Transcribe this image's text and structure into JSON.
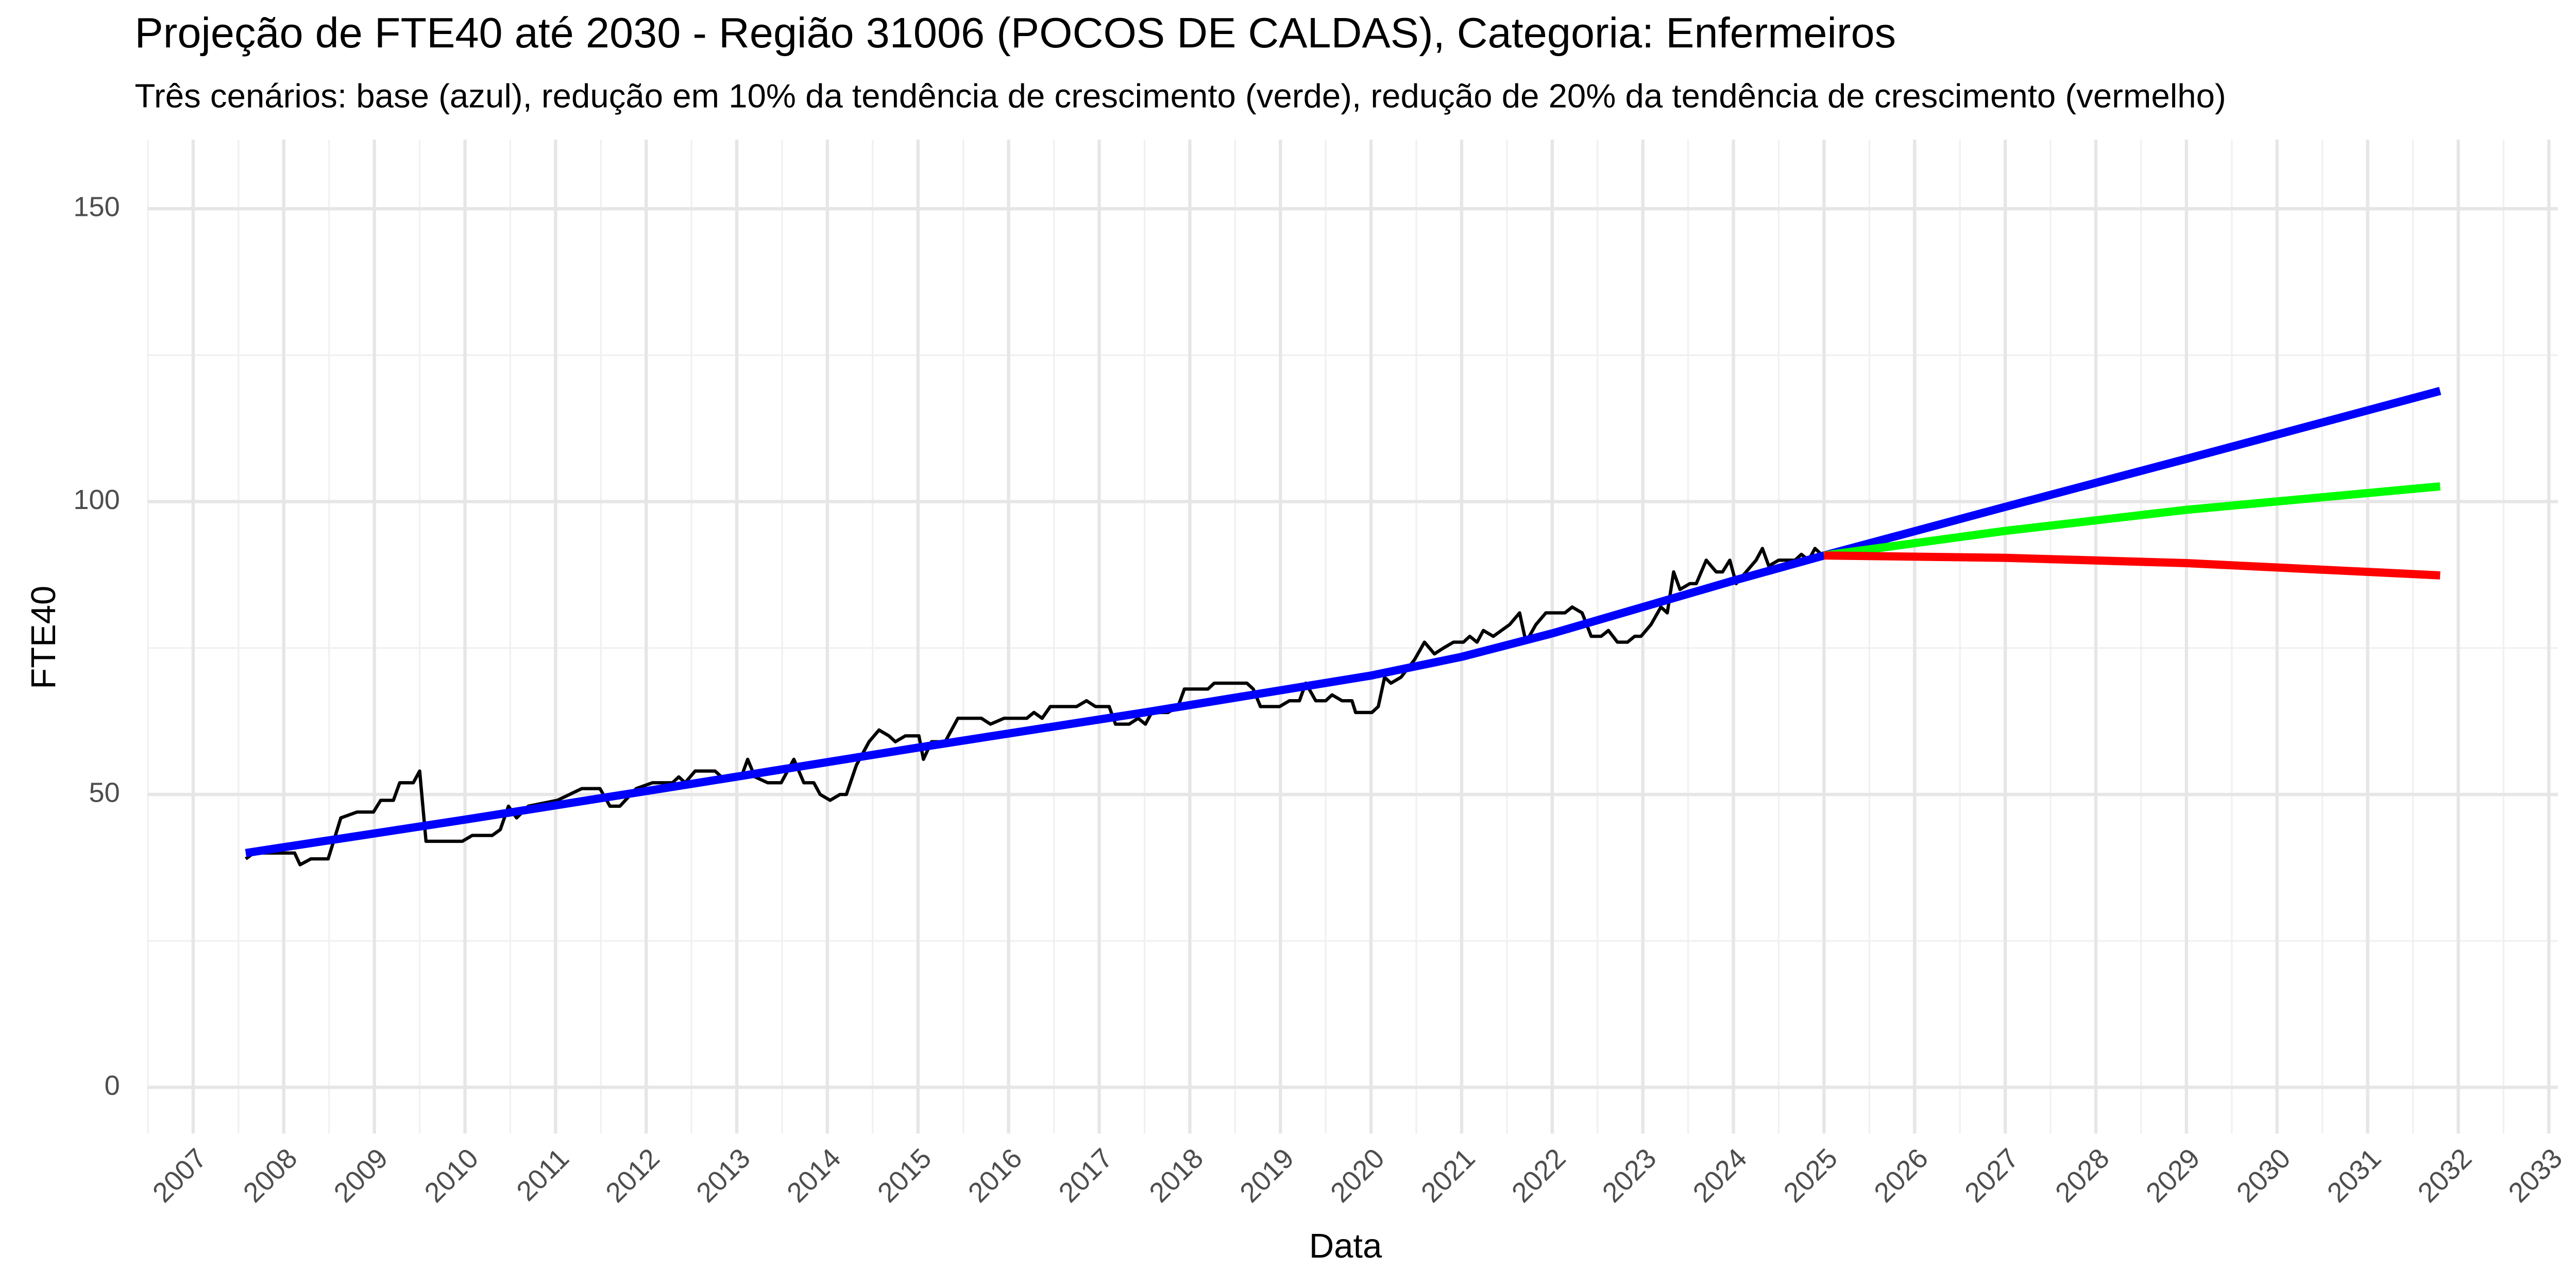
{
  "chart_data": {
    "type": "line",
    "title": "Projeção de FTE40 até 2030 - Região 31006 (POCOS DE CALDAS), Categoria: Enfermeiros",
    "subtitle": "Três cenários: base (azul), redução em 10% da tendência de crescimento (verde), redução de 20% da tendência de crescimento (vermelho)",
    "x_label": "Data",
    "y_label": "FTE40",
    "xlim": [
      2006.5,
      2033.1
    ],
    "ylim": [
      -7.9,
      161.8
    ],
    "xticks": [
      2007,
      2008,
      2009,
      2010,
      2011,
      2012,
      2013,
      2014,
      2015,
      2016,
      2017,
      2018,
      2019,
      2020,
      2021,
      2022,
      2023,
      2024,
      2025,
      2026,
      2027,
      2028,
      2029,
      2030,
      2031,
      2032,
      2033
    ],
    "yticks": [
      0,
      50,
      100,
      150
    ],
    "grid": true,
    "series": [
      {
        "color": "#000000",
        "x": [
          2007.58,
          2007.67,
          2008.12,
          2008.18,
          2008.3,
          2008.49,
          2008.63,
          2008.81,
          2008.99,
          2009.07,
          2009.21,
          2009.28,
          2009.43,
          2009.5,
          2009.57,
          2009.97,
          2010.08,
          2010.3,
          2010.39,
          2010.48,
          2010.57,
          2010.7,
          2011.02,
          2011.29,
          2011.49,
          2011.6,
          2011.71,
          2011.89,
          2012.07,
          2012.29,
          2012.36,
          2012.43,
          2012.54,
          2012.76,
          2012.83,
          2013.05,
          2013.12,
          2013.2,
          2013.34,
          2013.49,
          2013.63,
          2013.74,
          2013.85,
          2013.92,
          2014.03,
          2014.14,
          2014.21,
          2014.32,
          2014.46,
          2014.57,
          2014.68,
          2014.75,
          2014.86,
          2015.01,
          2015.06,
          2015.15,
          2015.3,
          2015.44,
          2015.7,
          2015.8,
          2015.95,
          2016.2,
          2016.28,
          2016.37,
          2016.46,
          2016.75,
          2016.86,
          2016.96,
          2017.11,
          2017.18,
          2017.33,
          2017.43,
          2017.51,
          2017.58,
          2017.76,
          2017.87,
          2017.94,
          2018.2,
          2018.27,
          2018.63,
          2018.7,
          2018.78,
          2018.99,
          2019.1,
          2019.21,
          2019.28,
          2019.39,
          2019.5,
          2019.57,
          2019.68,
          2019.79,
          2019.83,
          2020.01,
          2020.08,
          2020.15,
          2020.22,
          2020.33,
          2020.48,
          2020.59,
          2020.7,
          2020.8,
          2020.91,
          2021.02,
          2021.09,
          2021.17,
          2021.24,
          2021.35,
          2021.53,
          2021.64,
          2021.71,
          2021.82,
          2021.93,
          2022.14,
          2022.22,
          2022.33,
          2022.43,
          2022.54,
          2022.62,
          2022.72,
          2022.83,
          2022.91,
          2022.98,
          2023.09,
          2023.2,
          2023.27,
          2023.34,
          2023.41,
          2023.52,
          2023.59,
          2023.7,
          2023.81,
          2023.88,
          2023.96,
          2024.03,
          2024.14,
          2024.25,
          2024.32,
          2024.39,
          2024.5,
          2024.68,
          2024.75,
          2024.83,
          2024.9,
          2024.97
        ],
        "values": [
          39,
          40,
          40,
          38,
          39,
          39,
          46,
          47,
          47,
          49,
          49,
          52,
          52,
          54,
          42,
          42,
          43,
          43,
          44,
          48,
          46,
          48,
          49,
          51,
          51,
          48,
          48,
          51,
          52,
          52,
          53,
          52,
          54,
          54,
          53,
          53,
          56,
          53,
          52,
          52,
          56,
          52,
          52,
          50,
          49,
          50,
          50,
          55,
          59,
          61,
          60,
          59,
          60,
          60,
          56,
          59,
          59,
          63,
          63,
          62,
          63,
          63,
          64,
          63,
          65,
          65,
          66,
          65,
          65,
          62,
          62,
          63,
          62,
          64,
          64,
          65,
          68,
          68,
          69,
          69,
          68,
          65,
          65,
          66,
          66,
          69,
          66,
          66,
          67,
          66,
          66,
          64,
          64,
          65,
          70,
          69,
          70,
          73,
          76,
          74,
          75,
          76,
          76,
          77,
          76,
          78,
          77,
          79,
          81,
          76,
          79,
          81,
          81,
          82,
          81,
          77,
          77,
          78,
          76,
          76,
          77,
          77,
          79,
          82,
          81,
          88,
          85,
          86,
          86,
          90,
          88,
          88,
          90,
          86,
          88,
          90,
          92,
          89,
          90,
          90,
          91,
          90,
          92,
          91
        ]
      },
      {
        "color": "#0000ff",
        "x": [
          2007.58,
          2010,
          2012.5,
          2015,
          2017.5,
          2020,
          2021,
          2022,
          2023,
          2024,
          2025,
          2027,
          2029,
          2031.8
        ],
        "values": [
          40,
          45.7,
          51.8,
          58,
          64,
          70.3,
          73.5,
          77.5,
          82,
          86.5,
          90.8,
          99.1,
          107.3,
          118.9
        ]
      },
      {
        "color": "#00ff00",
        "x": [
          2025,
          2027,
          2029,
          2031.8
        ],
        "values": [
          90.8,
          95,
          98.6,
          102.6
        ]
      },
      {
        "color": "#ff0000",
        "x": [
          2025,
          2027,
          2029,
          2031.8
        ],
        "values": [
          90.8,
          90.4,
          89.5,
          87.4
        ]
      }
    ]
  }
}
